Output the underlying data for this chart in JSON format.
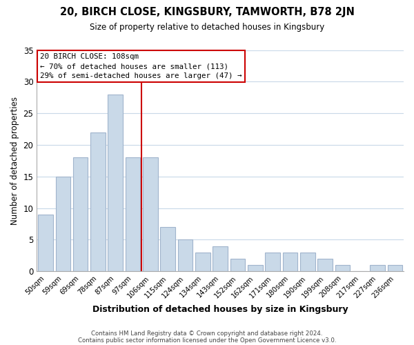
{
  "title": "20, BIRCH CLOSE, KINGSBURY, TAMWORTH, B78 2JN",
  "subtitle": "Size of property relative to detached houses in Kingsbury",
  "xlabel": "Distribution of detached houses by size in Kingsbury",
  "ylabel": "Number of detached properties",
  "bar_labels": [
    "50sqm",
    "59sqm",
    "69sqm",
    "78sqm",
    "87sqm",
    "97sqm",
    "106sqm",
    "115sqm",
    "124sqm",
    "134sqm",
    "143sqm",
    "152sqm",
    "162sqm",
    "171sqm",
    "180sqm",
    "190sqm",
    "199sqm",
    "208sqm",
    "217sqm",
    "227sqm",
    "236sqm"
  ],
  "bar_values": [
    9,
    15,
    18,
    22,
    28,
    18,
    18,
    7,
    5,
    3,
    4,
    2,
    1,
    3,
    3,
    3,
    2,
    1,
    0,
    1,
    1
  ],
  "bar_color": "#c9d9e8",
  "bar_edgecolor": "#a0b4cc",
  "vline_color": "#cc0000",
  "annotation_title": "20 BIRCH CLOSE: 108sqm",
  "annotation_line1": "← 70% of detached houses are smaller (113)",
  "annotation_line2": "29% of semi-detached houses are larger (47) →",
  "annotation_box_edgecolor": "#cc0000",
  "ylim": [
    0,
    35
  ],
  "yticks": [
    0,
    5,
    10,
    15,
    20,
    25,
    30,
    35
  ],
  "footer1": "Contains HM Land Registry data © Crown copyright and database right 2024.",
  "footer2": "Contains public sector information licensed under the Open Government Licence v3.0.",
  "background_color": "#ffffff",
  "grid_color": "#c8d8e8"
}
